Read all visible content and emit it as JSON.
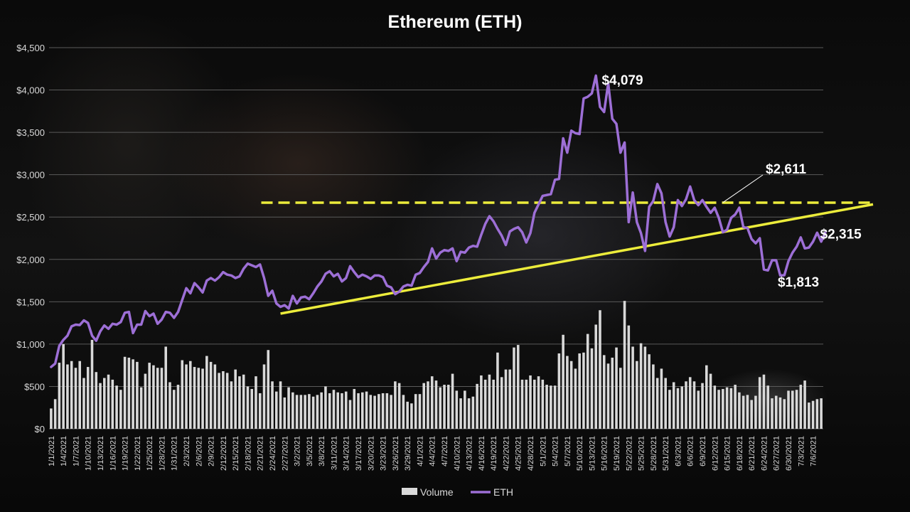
{
  "chart_data": {
    "type": "bar+line",
    "title": "Ethereum (ETH)",
    "xlabel": "",
    "ylabel": "",
    "ylim": [
      0,
      4500
    ],
    "y_ticks": [
      0,
      500,
      1000,
      1500,
      2000,
      2500,
      3000,
      3500,
      4000,
      4500
    ],
    "y_tick_labels": [
      "$0",
      "$500",
      "$1,000",
      "$1,500",
      "$2,000",
      "$2,500",
      "$3,000",
      "$3,500",
      "$4,000",
      "$4,500"
    ],
    "x_tick_labels": [
      "1/1/2021",
      "1/4/2021",
      "1/7/2021",
      "1/10/2021",
      "1/13/2021",
      "1/16/2021",
      "1/19/2021",
      "1/22/2021",
      "1/25/2021",
      "1/28/2021",
      "1/31/2021",
      "2/3/2021",
      "2/6/2021",
      "2/9/2021",
      "2/12/2021",
      "2/15/2021",
      "2/18/2021",
      "2/21/2021",
      "2/24/2021",
      "2/27/2021",
      "3/2/2021",
      "3/5/2021",
      "3/8/2021",
      "3/11/2021",
      "3/14/2021",
      "3/17/2021",
      "3/20/2021",
      "3/23/2021",
      "3/26/2021",
      "3/29/2021",
      "4/1/2021",
      "4/4/2021",
      "4/7/2021",
      "4/10/2021",
      "4/13/2021",
      "4/16/2021",
      "4/19/2021",
      "4/22/2021",
      "4/25/2021",
      "4/28/2021",
      "5/1/2021",
      "5/4/2021",
      "5/7/2021",
      "5/10/2021",
      "5/13/2021",
      "5/16/2021",
      "5/19/2021",
      "5/22/2021",
      "5/25/2021",
      "5/28/2021",
      "5/31/2021",
      "6/3/2021",
      "6/6/2021",
      "6/9/2021",
      "6/12/2021",
      "6/15/2021",
      "6/18/2021",
      "6/21/2021",
      "6/24/2021",
      "6/27/2021",
      "6/30/2021",
      "7/3/2021",
      "7/6/2021"
    ],
    "legend_position": "bottom",
    "grid": true,
    "series": [
      {
        "name": "Volume",
        "type": "bar",
        "color": "#d9d9d9",
        "values": [
          240,
          350,
          780,
          1000,
          760,
          800,
          720,
          800,
          600,
          730,
          1050,
          670,
          540,
          600,
          640,
          580,
          510,
          460,
          850,
          840,
          820,
          790,
          490,
          650,
          780,
          750,
          720,
          720,
          970,
          550,
          460,
          520,
          810,
          760,
          800,
          730,
          720,
          710,
          860,
          790,
          760,
          660,
          680,
          660,
          560,
          700,
          620,
          640,
          500,
          470,
          620,
          420,
          760,
          930,
          560,
          440,
          560,
          370,
          490,
          430,
          400,
          400,
          400,
          410,
          380,
          400,
          430,
          500,
          420,
          460,
          430,
          420,
          440,
          340,
          470,
          420,
          430,
          440,
          400,
          390,
          410,
          420,
          420,
          400,
          560,
          540,
          400,
          320,
          300,
          410,
          410,
          540,
          560,
          620,
          570,
          490,
          520,
          520,
          650,
          450,
          360,
          450,
          360,
          380,
          530,
          630,
          580,
          640,
          580,
          900,
          610,
          700,
          700,
          960,
          990,
          580,
          580,
          630,
          580,
          620,
          580,
          520,
          510,
          510,
          890,
          1110,
          860,
          800,
          710,
          890,
          900,
          1120,
          950,
          1230,
          1400,
          870,
          770,
          840,
          960,
          720,
          1510,
          1220,
          970,
          800,
          1010,
          970,
          880,
          760,
          600,
          710,
          600,
          460,
          550,
          480,
          500,
          560,
          610,
          560,
          450,
          540,
          750,
          650,
          510,
          460,
          470,
          490,
          480,
          520,
          430,
          390,
          400,
          340,
          390,
          610,
          640,
          510,
          360,
          390,
          370,
          350,
          450,
          450,
          460,
          520,
          570,
          310,
          330,
          350,
          360
        ]
      },
      {
        "name": "ETH",
        "type": "line",
        "color": "#9d6fd6",
        "values": [
          730,
          770,
          980,
          1050,
          1100,
          1210,
          1230,
          1225,
          1280,
          1250,
          1100,
          1040,
          1150,
          1220,
          1180,
          1240,
          1230,
          1260,
          1370,
          1380,
          1130,
          1230,
          1230,
          1390,
          1330,
          1360,
          1240,
          1290,
          1380,
          1370,
          1310,
          1380,
          1520,
          1660,
          1600,
          1720,
          1670,
          1610,
          1750,
          1780,
          1750,
          1790,
          1850,
          1820,
          1810,
          1780,
          1800,
          1890,
          1950,
          1930,
          1910,
          1940,
          1780,
          1570,
          1630,
          1480,
          1440,
          1460,
          1420,
          1570,
          1480,
          1550,
          1560,
          1530,
          1600,
          1680,
          1740,
          1830,
          1860,
          1800,
          1830,
          1740,
          1780,
          1920,
          1850,
          1790,
          1820,
          1800,
          1770,
          1810,
          1810,
          1790,
          1690,
          1670,
          1590,
          1620,
          1680,
          1700,
          1690,
          1820,
          1840,
          1910,
          1970,
          2130,
          2010,
          2080,
          2110,
          2100,
          2130,
          1980,
          2090,
          2080,
          2140,
          2160,
          2150,
          2290,
          2420,
          2510,
          2450,
          2360,
          2280,
          2170,
          2330,
          2360,
          2380,
          2320,
          2200,
          2310,
          2550,
          2650,
          2750,
          2760,
          2770,
          2940,
          2950,
          3430,
          3260,
          3520,
          3490,
          3480,
          3900,
          3920,
          3960,
          4170,
          3800,
          3740,
          4079,
          3660,
          3600,
          3260,
          3380,
          2440,
          2790,
          2440,
          2310,
          2100,
          2620,
          2690,
          2890,
          2780,
          2440,
          2270,
          2380,
          2700,
          2630,
          2710,
          2860,
          2700,
          2640,
          2700,
          2620,
          2550,
          2610,
          2490,
          2320,
          2350,
          2490,
          2530,
          2611,
          2380,
          2370,
          2240,
          2190,
          2250,
          1880,
          1870,
          1990,
          1990,
          1810,
          1813,
          1980,
          2080,
          2150,
          2260,
          2130,
          2140,
          2210,
          2315,
          2210,
          2315
        ]
      }
    ],
    "reference_lines": [
      {
        "name": "resistance",
        "style": "dashed",
        "color": "#ecec3b",
        "value": 2670,
        "x_start": "2/22/2021",
        "x_end": "7/6/2021"
      },
      {
        "name": "trendline",
        "style": "solid",
        "color": "#ecec3b",
        "from": {
          "x": "2/26/2021",
          "y": 1360
        },
        "to": {
          "x": "7/6/2021",
          "y": 2650
        }
      }
    ],
    "annotations": [
      {
        "text": "$4,079",
        "x": "5/13/2021",
        "y": 4079
      },
      {
        "text": "$2,611",
        "x": "6/15/2021",
        "y": 2611
      },
      {
        "text": "$2,315",
        "x": "7/6/2021",
        "y": 2315
      },
      {
        "text": "$1,813",
        "x": "6/26/2021",
        "y": 1813
      }
    ]
  }
}
